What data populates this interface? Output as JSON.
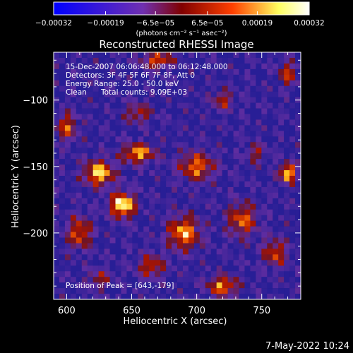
{
  "chart_data": {
    "type": "heatmap",
    "title": "Reconstructed RHESSI Image",
    "xlabel": "Heliocentric X (arcsec)",
    "ylabel": "Heliocentric Y (arcsec)",
    "xlim": [
      590,
      780
    ],
    "ylim": [
      -250,
      -64
    ],
    "x_ticks": [
      600,
      650,
      700,
      750
    ],
    "y_ticks": [
      -200,
      -150,
      -100
    ],
    "x_tick_labels": [
      "600",
      "650",
      "700",
      "750"
    ],
    "y_tick_labels": [
      "−200",
      "−150",
      "−100"
    ],
    "colorbar": {
      "range": [
        -0.00032,
        0.00032
      ],
      "ticks": [
        -0.00032,
        -0.00019,
        -6.5e-05,
        6.5e-05,
        0.00019,
        0.00032
      ],
      "tick_labels": [
        "−0.00032",
        "−0.00019",
        "−6.5e−05",
        "6.5e−05",
        "0.00019",
        "0.00032"
      ],
      "units": "(photons cm⁻² s⁻¹ asec⁻²)",
      "colors": [
        "#0000ff",
        "#7030b0",
        "#800000",
        "#ff5000",
        "#ffff70",
        "#ffffff"
      ]
    },
    "annotations": {
      "time_range": "15-Dec-2007 06:06:48.000 to 06:12:48.000",
      "detectors": "Detectors: 3F 4F 5F 6F 7F 8F, Att 0",
      "energy_range": "Energy Range: 25.0 - 50.0 keV",
      "algorithm": "Clean",
      "total_counts": "Total counts: 9.09E+03",
      "peak": "Position of Peak = [643,-179]"
    },
    "peak": [
      643,
      -179
    ],
    "grid": false
  },
  "footer": {
    "date": "7-May-2022 10:24"
  }
}
